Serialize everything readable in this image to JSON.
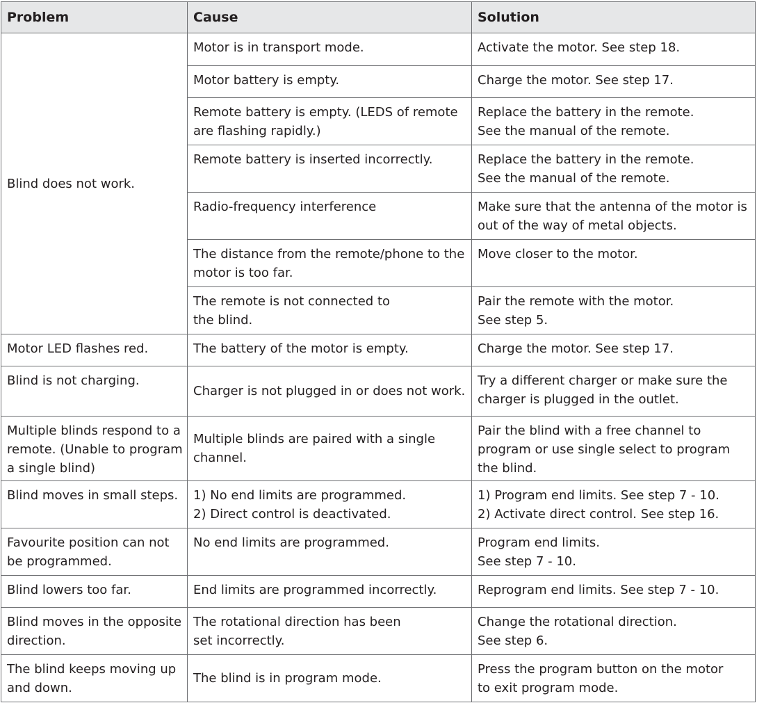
{
  "headers": {
    "problem": "Problem",
    "cause": "Cause",
    "solution": "Solution"
  },
  "rows": [
    {
      "problem": [
        "Blind does not work."
      ],
      "causes": [
        {
          "cause": [
            "Motor is in transport mode."
          ],
          "solution": [
            "Activate the motor. See step 18."
          ]
        },
        {
          "cause": [
            "Motor battery is empty."
          ],
          "solution": [
            "Charge the motor. See step 17."
          ]
        },
        {
          "cause": [
            "Remote battery is empty. (LEDS of remote",
            "are flashing rapidly.)"
          ],
          "solution": [
            "Replace the battery in the remote.",
            "See the manual of the remote."
          ]
        },
        {
          "cause": [
            "Remote battery is inserted incorrectly."
          ],
          "solution": [
            "Replace the battery in the remote.",
            "See the manual of the remote."
          ]
        },
        {
          "cause": [
            "Radio-frequency interference"
          ],
          "solution": [
            "Make sure that the antenna of the motor is",
            "out of the way of metal objects."
          ]
        },
        {
          "cause": [
            "The distance from the remote/phone to the",
            "motor is too far."
          ],
          "solution": [
            "Move closer to the motor."
          ]
        },
        {
          "cause": [
            "The remote is not connected to",
            "the blind."
          ],
          "solution": [
            "Pair the remote with the motor.",
            "See step 5."
          ]
        }
      ]
    },
    {
      "problem": [
        "Motor LED flashes red."
      ],
      "causes": [
        {
          "cause": [
            "The battery of the motor is empty."
          ],
          "solution": [
            "Charge the motor. See step 17."
          ]
        }
      ]
    },
    {
      "problem": [
        "Blind is not charging."
      ],
      "causes": [
        {
          "cause": [
            "Charger is not plugged in or does not work."
          ],
          "solution": [
            "Try a different charger or make sure the",
            "charger is plugged in the outlet."
          ]
        }
      ]
    },
    {
      "problem": [
        "Multiple blinds respond to a",
        "remote. (Unable to program",
        "a single blind)"
      ],
      "causes": [
        {
          "cause": [
            "Multiple blinds are paired with a single",
            "channel."
          ],
          "solution": [
            "Pair the blind with a free channel to",
            "program or use single select to program",
            "the blind."
          ]
        }
      ]
    },
    {
      "problem": [
        "Blind moves in small steps."
      ],
      "causes": [
        {
          "cause": [
            "1) No end limits are programmed.",
            "2) Direct control is deactivated."
          ],
          "solution": [
            "1) Program end limits. See step 7 - 10.",
            "2) Activate direct control. See step 16."
          ]
        }
      ]
    },
    {
      "problem": [
        "Favourite position can not",
        "be programmed."
      ],
      "causes": [
        {
          "cause": [
            "No end limits are programmed."
          ],
          "solution": [
            "Program end limits.",
            "See step 7 - 10."
          ]
        }
      ]
    },
    {
      "problem": [
        "Blind lowers too far."
      ],
      "causes": [
        {
          "cause": [
            "End limits are programmed incorrectly."
          ],
          "solution": [
            "Reprogram end limits. See step 7 - 10."
          ]
        }
      ]
    },
    {
      "problem": [
        "Blind moves in the opposite",
        "direction."
      ],
      "causes": [
        {
          "cause": [
            "The rotational direction has been",
            "set incorrectly."
          ],
          "solution": [
            "Change the rotational direction.",
            "See step 6."
          ]
        }
      ]
    },
    {
      "problem": [
        "The blind keeps moving up",
        "and down."
      ],
      "causes": [
        {
          "cause": [
            "The blind is in program mode."
          ],
          "solution": [
            "Press the program button on the motor",
            "to exit program mode."
          ]
        }
      ]
    }
  ]
}
